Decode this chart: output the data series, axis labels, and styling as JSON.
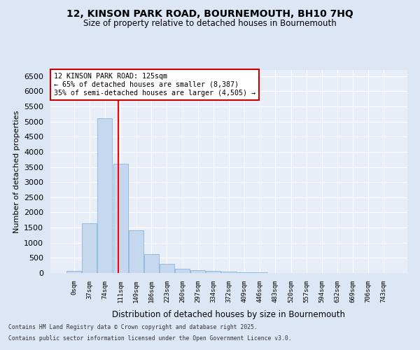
{
  "title1": "12, KINSON PARK ROAD, BOURNEMOUTH, BH10 7HQ",
  "title2": "Size of property relative to detached houses in Bournemouth",
  "xlabel": "Distribution of detached houses by size in Bournemouth",
  "ylabel": "Number of detached properties",
  "bar_values": [
    75,
    1650,
    5100,
    3600,
    1420,
    620,
    310,
    140,
    100,
    75,
    50,
    30,
    15,
    10,
    5,
    3,
    2,
    1,
    1,
    0,
    0
  ],
  "bin_labels": [
    "0sqm",
    "37sqm",
    "74sqm",
    "111sqm",
    "149sqm",
    "186sqm",
    "223sqm",
    "260sqm",
    "297sqm",
    "334sqm",
    "372sqm",
    "409sqm",
    "446sqm",
    "483sqm",
    "520sqm",
    "557sqm",
    "594sqm",
    "632sqm",
    "669sqm",
    "706sqm",
    "743sqm"
  ],
  "bar_color": "#c5d8f0",
  "bar_edge_color": "#7aaad4",
  "red_line_x": 2.88,
  "annotation_title": "12 KINSON PARK ROAD: 125sqm",
  "annotation_line1": "← 65% of detached houses are smaller (8,387)",
  "annotation_line2": "35% of semi-detached houses are larger (4,505) →",
  "annotation_box_color": "#ffffff",
  "annotation_box_edge": "#cc0000",
  "ylim": [
    0,
    6700
  ],
  "yticks": [
    0,
    500,
    1000,
    1500,
    2000,
    2500,
    3000,
    3500,
    4000,
    4500,
    5000,
    5500,
    6000,
    6500
  ],
  "footer1": "Contains HM Land Registry data © Crown copyright and database right 2025.",
  "footer2": "Contains public sector information licensed under the Open Government Licence v3.0.",
  "bg_color": "#dce6f5",
  "plot_bg_color": "#e8eef8"
}
